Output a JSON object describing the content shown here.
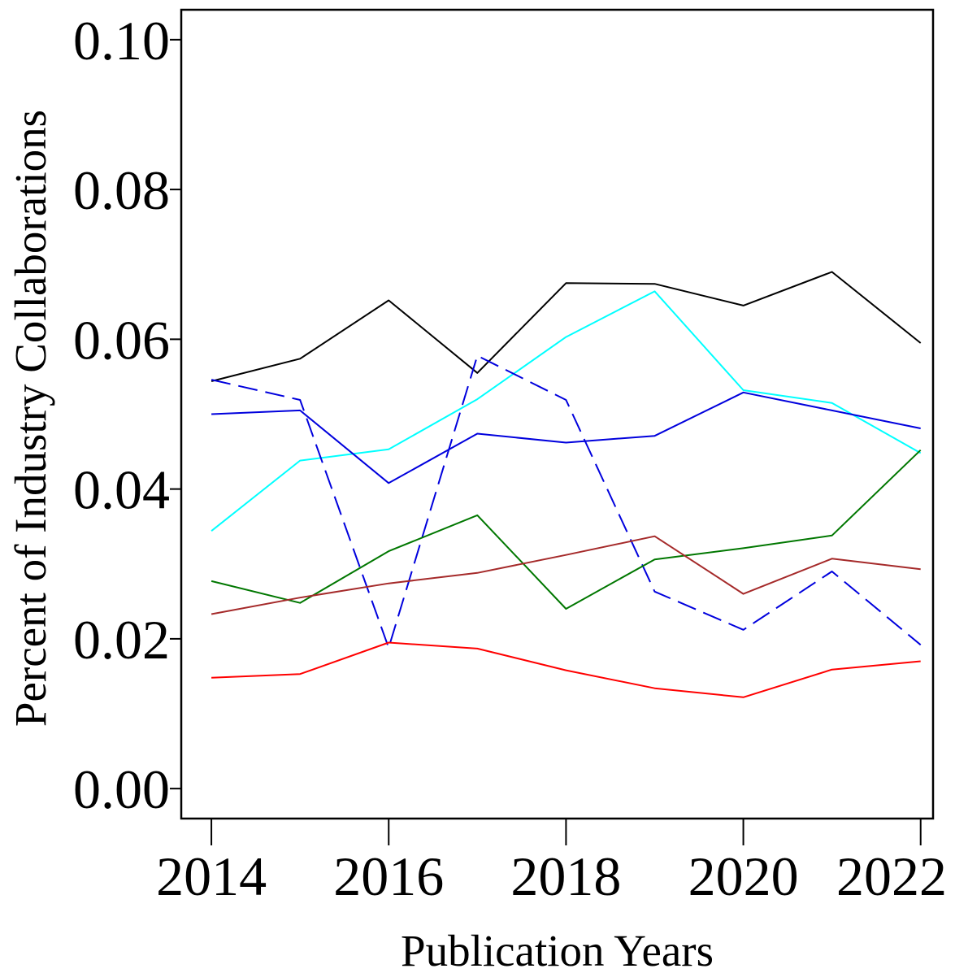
{
  "chart_data": {
    "type": "line",
    "xlabel": "Publication Years",
    "ylabel": "Percent of Industry Collaborations",
    "xlim": [
      2013.66,
      2022.14
    ],
    "ylim": [
      -0.004,
      0.104
    ],
    "x_ticks": [
      2014,
      2016,
      2018,
      2020,
      2022
    ],
    "y_ticks": [
      0.0,
      0.02,
      0.04,
      0.06,
      0.08,
      0.1
    ],
    "y_tick_labels": [
      "0.00",
      "0.02",
      "0.04",
      "0.06",
      "0.08",
      "0.10"
    ],
    "grid": false,
    "x": [
      2014,
      2015,
      2016,
      2017,
      2018,
      2019,
      2020,
      2021,
      2022
    ],
    "series": [
      {
        "color": "#000000",
        "dash": "solid",
        "values": [
          0.0544,
          0.0574,
          0.0652,
          0.0555,
          0.0675,
          0.0674,
          0.0645,
          0.069,
          0.0595
        ]
      },
      {
        "color": "#00ffff",
        "dash": "solid",
        "values": [
          0.0344,
          0.0438,
          0.0453,
          0.052,
          0.0603,
          0.0664,
          0.0532,
          0.0515,
          0.0448
        ]
      },
      {
        "color": "#0000dd",
        "dash": "solid",
        "values": [
          0.05,
          0.0505,
          0.0408,
          0.0474,
          0.0462,
          0.0471,
          0.0529,
          0.0505,
          0.0481
        ]
      },
      {
        "color": "#0000dd",
        "dash": "dashed",
        "values": [
          0.0546,
          0.0519,
          0.0188,
          0.0578,
          0.0519,
          0.0263,
          0.0212,
          0.029,
          0.0192
        ]
      },
      {
        "color": "#007700",
        "dash": "solid",
        "values": [
          0.0277,
          0.0248,
          0.0317,
          0.0365,
          0.024,
          0.0306,
          0.0321,
          0.0338,
          0.0452
        ]
      },
      {
        "color": "#a52a2a",
        "dash": "solid",
        "values": [
          0.0233,
          0.0255,
          0.0274,
          0.0288,
          0.0312,
          0.0337,
          0.026,
          0.0307,
          0.0293
        ]
      },
      {
        "color": "#ff0000",
        "dash": "solid",
        "values": [
          0.0148,
          0.0153,
          0.0195,
          0.0187,
          0.0158,
          0.0134,
          0.0122,
          0.0159,
          0.017
        ]
      }
    ]
  }
}
